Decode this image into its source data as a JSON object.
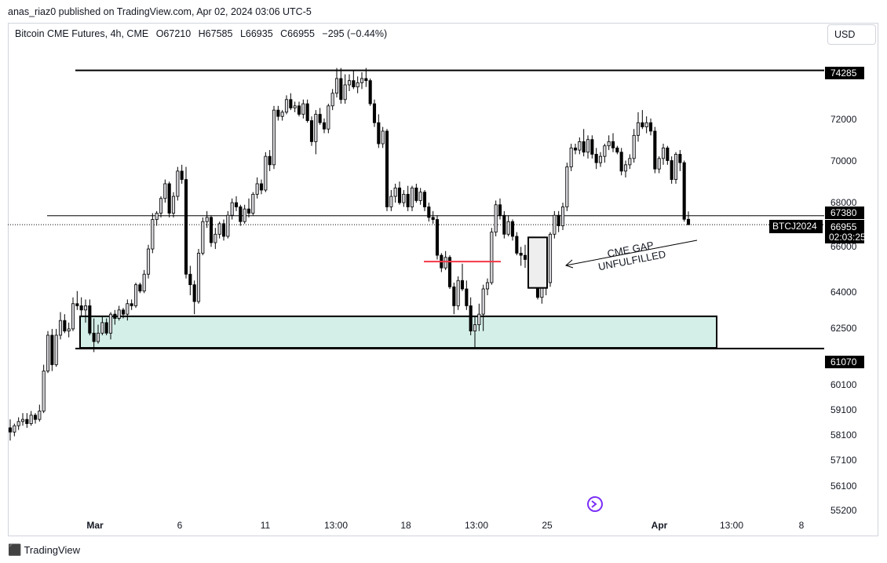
{
  "publisher_line": "anas_riaz0 published on TradingView.com, Apr 02, 2024 03:06 UTC-5",
  "legend": {
    "symbol": "Bitcoin CME Futures, 4h, CME",
    "open": "O67210",
    "high": "H67585",
    "low": "L66935",
    "close": "C66955",
    "change": "−295 (−0.44%)"
  },
  "currency": "USD",
  "footer_brand": "TradingView",
  "colors": {
    "bull_body": "#d7d7dc",
    "bear_body": "#000000",
    "wick": "#000000",
    "zone_fill": "#d4efe8",
    "red_line": "#f23645",
    "tag_bg": "#000000"
  },
  "chart_data": {
    "type": "candlestick",
    "timeframe": "4h",
    "x_tick_labels": [
      "Mar",
      "6",
      "11",
      "13:00",
      "18",
      "13:00",
      "25",
      "Apr",
      "13:00",
      "8"
    ],
    "y_tick_labels": [
      "55200",
      "56100",
      "57100",
      "58100",
      "59100",
      "60100",
      "62500",
      "64000",
      "66000",
      "68000",
      "70000",
      "72000"
    ],
    "y_range": [
      54900,
      75100
    ],
    "price_tags": {
      "top_level": "74285",
      "mid_level": "67380",
      "last_price": "66955",
      "countdown": "02:03:25",
      "symbol_tag": "BTCJ2024",
      "bottom_level": "61070"
    },
    "levels": [
      74285,
      67380,
      61070
    ],
    "last_price": 66955,
    "zone": {
      "top": 62600,
      "bottom": 61100
    },
    "gap_box": {
      "top": 66350,
      "bottom": 63950
    },
    "red_line_level": 65200,
    "annotation": [
      "CME GAP",
      "UNFULFILLED"
    ],
    "candles": [
      [
        57300,
        57700,
        56700,
        57100
      ],
      [
        57100,
        57500,
        56900,
        57400
      ],
      [
        57400,
        57800,
        57200,
        57600
      ],
      [
        57600,
        58000,
        57400,
        57700
      ],
      [
        57700,
        58000,
        57300,
        57500
      ],
      [
        57500,
        58100,
        57400,
        57900
      ],
      [
        57900,
        58000,
        57500,
        57700
      ],
      [
        57700,
        58400,
        57600,
        58100
      ],
      [
        58100,
        60300,
        58000,
        60000
      ],
      [
        60000,
        61900,
        59900,
        61700
      ],
      [
        61700,
        62000,
        60000,
        60300
      ],
      [
        60300,
        62000,
        60200,
        61700
      ],
      [
        61700,
        62800,
        61500,
        62400
      ],
      [
        62400,
        62700,
        61800,
        61900
      ],
      [
        61900,
        62300,
        61600,
        62000
      ],
      [
        62000,
        63500,
        61900,
        63200
      ],
      [
        63200,
        63800,
        62900,
        63100
      ],
      [
        63100,
        63500,
        62600,
        62900
      ],
      [
        62900,
        63400,
        62300,
        63100
      ],
      [
        63100,
        63400,
        61700,
        61800
      ],
      [
        61800,
        62500,
        60900,
        61400
      ],
      [
        61400,
        62200,
        61300,
        61800
      ],
      [
        61800,
        62600,
        61700,
        62300
      ],
      [
        62300,
        62500,
        61700,
        61800
      ],
      [
        61800,
        62800,
        61500,
        62700
      ],
      [
        62700,
        62900,
        62200,
        62500
      ],
      [
        62500,
        63100,
        62400,
        62900
      ],
      [
        62900,
        63000,
        62500,
        62700
      ],
      [
        62700,
        63400,
        62400,
        63200
      ],
      [
        63200,
        63400,
        62900,
        63100
      ],
      [
        63100,
        64200,
        63000,
        64100
      ],
      [
        64100,
        64200,
        63700,
        63800
      ],
      [
        63800,
        64800,
        63700,
        64600
      ],
      [
        64600,
        66000,
        64400,
        65800
      ],
      [
        65800,
        67500,
        65600,
        67200
      ],
      [
        67200,
        67600,
        66900,
        67500
      ],
      [
        67500,
        68300,
        67300,
        68200
      ],
      [
        68200,
        69100,
        68000,
        68900
      ],
      [
        68900,
        69000,
        67300,
        67500
      ],
      [
        67500,
        68500,
        67300,
        68300
      ],
      [
        68300,
        69700,
        68100,
        69500
      ],
      [
        69500,
        69800,
        68900,
        69100
      ],
      [
        69100,
        69700,
        64400,
        64600
      ],
      [
        64600,
        65000,
        63600,
        64100
      ],
      [
        64100,
        64300,
        62700,
        63300
      ],
      [
        63300,
        65800,
        63200,
        65600
      ],
      [
        65600,
        67300,
        65500,
        67100
      ],
      [
        67100,
        67600,
        66800,
        67300
      ],
      [
        67300,
        67400,
        65900,
        66100
      ],
      [
        66100,
        66800,
        65800,
        66500
      ],
      [
        66500,
        67100,
        66300,
        67000
      ],
      [
        67000,
        67200,
        66200,
        66400
      ],
      [
        66400,
        67600,
        66300,
        67400
      ],
      [
        67400,
        68200,
        67200,
        68000
      ],
      [
        68000,
        68300,
        67600,
        67800
      ],
      [
        67800,
        67900,
        66900,
        67100
      ],
      [
        67100,
        67900,
        67000,
        67700
      ],
      [
        67700,
        68200,
        67300,
        67500
      ],
      [
        67500,
        68500,
        67400,
        68400
      ],
      [
        68400,
        69200,
        68200,
        68900
      ],
      [
        68900,
        69100,
        68400,
        68600
      ],
      [
        68600,
        70400,
        68500,
        70200
      ],
      [
        70200,
        70500,
        69500,
        69800
      ],
      [
        69800,
        72600,
        69600,
        72400
      ],
      [
        72400,
        72600,
        71900,
        72100
      ],
      [
        72100,
        72400,
        71900,
        72300
      ],
      [
        72300,
        73100,
        72200,
        72900
      ],
      [
        72900,
        73200,
        72400,
        72500
      ],
      [
        72500,
        72800,
        72300,
        72600
      ],
      [
        72600,
        72800,
        72100,
        72200
      ],
      [
        72200,
        72900,
        72000,
        72700
      ],
      [
        72700,
        72900,
        71800,
        71900
      ],
      [
        71900,
        72100,
        70700,
        70900
      ],
      [
        70900,
        72400,
        70300,
        72200
      ],
      [
        72200,
        72500,
        71700,
        71800
      ],
      [
        71800,
        72000,
        71300,
        71500
      ],
      [
        71500,
        72700,
        71300,
        72600
      ],
      [
        72600,
        73400,
        72400,
        73200
      ],
      [
        73200,
        74400,
        73000,
        73900
      ],
      [
        73900,
        74400,
        72700,
        72900
      ],
      [
        72900,
        74100,
        72700,
        73600
      ],
      [
        73600,
        74100,
        73300,
        73800
      ],
      [
        73800,
        74300,
        73400,
        73500
      ],
      [
        73500,
        74000,
        73200,
        73700
      ],
      [
        73700,
        74200,
        73400,
        73900
      ],
      [
        73900,
        74400,
        73500,
        73800
      ],
      [
        73800,
        73900,
        72600,
        72700
      ],
      [
        72700,
        72900,
        71600,
        71800
      ],
      [
        71800,
        72200,
        70600,
        70800
      ],
      [
        70800,
        71600,
        70600,
        71400
      ],
      [
        71400,
        71500,
        67600,
        67800
      ],
      [
        67800,
        68600,
        67600,
        68300
      ],
      [
        68300,
        68900,
        68000,
        68700
      ],
      [
        68700,
        69000,
        67900,
        68000
      ],
      [
        68000,
        68600,
        67800,
        68400
      ],
      [
        68400,
        68800,
        67600,
        67800
      ],
      [
        67800,
        68800,
        67600,
        68700
      ],
      [
        68700,
        68900,
        68000,
        68100
      ],
      [
        68100,
        68700,
        67900,
        68500
      ],
      [
        68500,
        68600,
        67600,
        67800
      ],
      [
        67800,
        68000,
        67100,
        67300
      ],
      [
        67300,
        67600,
        67000,
        67200
      ],
      [
        67200,
        67400,
        65300,
        65500
      ],
      [
        65500,
        65600,
        64700,
        64900
      ],
      [
        64900,
        65700,
        64800,
        65400
      ],
      [
        65400,
        65500,
        63900,
        64000
      ],
      [
        64000,
        64200,
        62700,
        63100
      ],
      [
        63100,
        64500,
        62900,
        64300
      ],
      [
        64300,
        65100,
        63800,
        63900
      ],
      [
        63900,
        64300,
        62900,
        63100
      ],
      [
        63100,
        63500,
        61700,
        61900
      ],
      [
        61900,
        62600,
        61100,
        62200
      ],
      [
        62200,
        63200,
        61900,
        62700
      ],
      [
        62700,
        64100,
        61900,
        63900
      ],
      [
        63900,
        64400,
        63600,
        64200
      ],
      [
        64200,
        66800,
        64100,
        66600
      ],
      [
        66600,
        68100,
        66400,
        67900
      ],
      [
        67900,
        68200,
        67200,
        67400
      ],
      [
        67400,
        67600,
        66300,
        66500
      ],
      [
        66500,
        67400,
        66400,
        67100
      ],
      [
        67100,
        67200,
        66200,
        66400
      ],
      [
        66400,
        66600,
        65500,
        65600
      ],
      [
        65600,
        65900,
        65000,
        65500
      ],
      [
        65500,
        66000,
        64900,
        65300
      ],
      [
        65300,
        66300,
        65100,
        66200
      ],
      [
        66200,
        66300,
        65300,
        65500
      ],
      [
        65500,
        65600,
        63400,
        63500
      ],
      [
        63500,
        64100,
        63200,
        64000
      ],
      [
        64000,
        64400,
        63600,
        64200
      ],
      [
        64200,
        66600,
        64000,
        66500
      ],
      [
        66500,
        67600,
        66300,
        67400
      ],
      [
        67400,
        67600,
        66600,
        66900
      ],
      [
        66900,
        68000,
        66700,
        67800
      ],
      [
        67800,
        69900,
        67600,
        69700
      ],
      [
        69700,
        70800,
        69500,
        70600
      ],
      [
        70600,
        70800,
        70300,
        70500
      ],
      [
        70500,
        71100,
        70300,
        70900
      ],
      [
        70900,
        71500,
        70200,
        70400
      ],
      [
        70400,
        71200,
        70100,
        71000
      ],
      [
        71000,
        71200,
        70100,
        70300
      ],
      [
        70300,
        70600,
        69600,
        69900
      ],
      [
        69900,
        70400,
        69700,
        70200
      ],
      [
        70200,
        70800,
        69900,
        70700
      ],
      [
        70700,
        71200,
        70500,
        70900
      ],
      [
        70900,
        71300,
        70400,
        70600
      ],
      [
        70600,
        70700,
        70300,
        70400
      ],
      [
        70400,
        70600,
        69300,
        69500
      ],
      [
        69500,
        70000,
        69200,
        69800
      ],
      [
        69800,
        70300,
        69600,
        70100
      ],
      [
        70100,
        71500,
        69900,
        71200
      ],
      [
        71200,
        72300,
        70900,
        71800
      ],
      [
        71800,
        72400,
        71500,
        71600
      ],
      [
        71600,
        72100,
        71300,
        71800
      ],
      [
        71800,
        72000,
        71200,
        71400
      ],
      [
        71400,
        71600,
        69400,
        69600
      ],
      [
        69600,
        70200,
        69400,
        70100
      ],
      [
        70100,
        70800,
        69800,
        70600
      ],
      [
        70600,
        70700,
        69800,
        70000
      ],
      [
        70000,
        70200,
        68900,
        69100
      ],
      [
        69100,
        70400,
        68900,
        70300
      ],
      [
        70300,
        70500,
        69500,
        69900
      ],
      [
        69900,
        70000,
        67100,
        67210
      ],
      [
        67210,
        67585,
        66935,
        66955
      ]
    ]
  }
}
